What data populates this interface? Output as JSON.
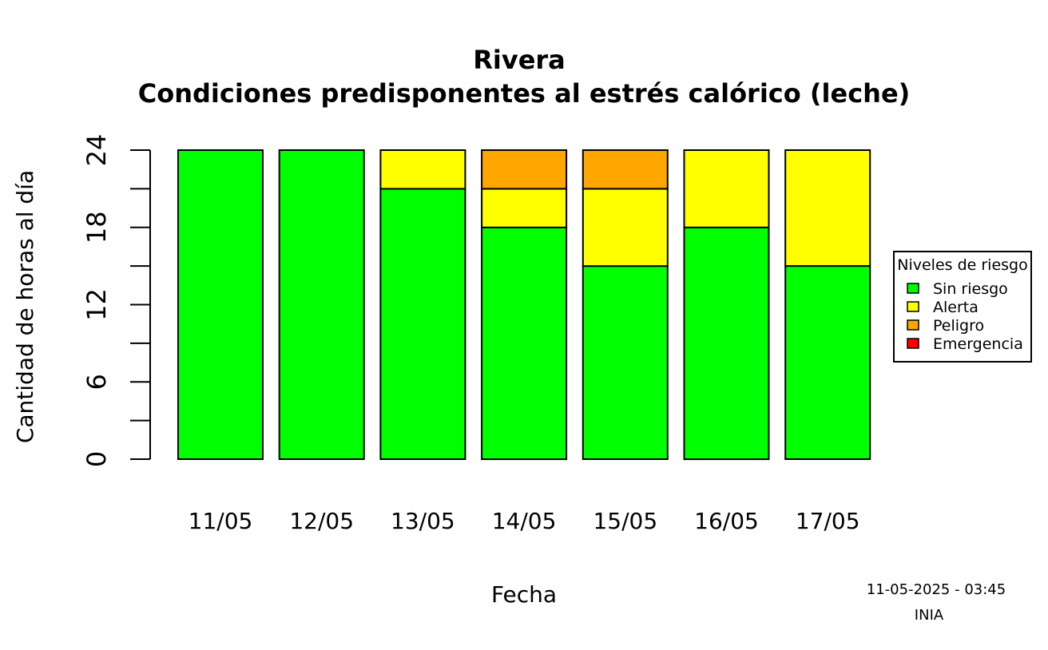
{
  "chart_data": {
    "type": "bar",
    "stacked": true,
    "title": "Rivera",
    "subtitle": "Condiciones predisponentes al estrés calórico (leche)",
    "xlabel": "Fecha",
    "ylabel": "Cantidad de horas al día",
    "ylim": [
      0,
      24
    ],
    "yticks": [
      0,
      3,
      6,
      9,
      12,
      15,
      18,
      21,
      24
    ],
    "ytick_labels": [
      "0",
      "6",
      "12",
      "18",
      "24"
    ],
    "categories": [
      "11/05",
      "12/05",
      "13/05",
      "14/05",
      "15/05",
      "16/05",
      "17/05"
    ],
    "series": [
      {
        "name": "Sin riesgo",
        "color": "#00ff00",
        "values": [
          24,
          24,
          21,
          18,
          15,
          18,
          15
        ]
      },
      {
        "name": "Alerta",
        "color": "#ffff00",
        "values": [
          0,
          0,
          3,
          3,
          6,
          6,
          9
        ]
      },
      {
        "name": "Peligro",
        "color": "#ffa500",
        "values": [
          0,
          0,
          0,
          3,
          3,
          0,
          0
        ]
      },
      {
        "name": "Emergencia",
        "color": "#ff0000",
        "values": [
          0,
          0,
          0,
          0,
          0,
          0,
          0
        ]
      }
    ],
    "legend": {
      "title": "Niveles de riesgo",
      "placement": "right"
    },
    "grid": false
  },
  "footer": {
    "timestamp": "11-05-2025 - 03:45",
    "source": "INIA"
  }
}
